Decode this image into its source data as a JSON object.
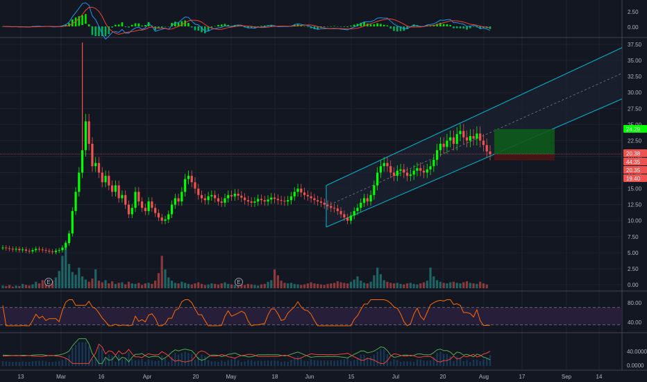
{
  "colors": {
    "background": "#131722",
    "grid": "#1f2330",
    "separator": "#434651",
    "up": "#26a69a",
    "up_bright": "#00ff00",
    "down": "#ef5350",
    "channel": "#00bcd4",
    "macd_line": "#2196f3",
    "signal_line": "#f44336",
    "rsi_line": "#ff6d00",
    "rsi_band": "#2a1f3d",
    "dmi_plus": "#4caf50",
    "dmi_minus": "#f44336",
    "adx": "#2196f3",
    "target_zone": "#0f5a1c",
    "stop_zone": "#4a1416"
  },
  "time_axis": {
    "labels": [
      "13",
      "Mar",
      "16",
      "Apr",
      "20",
      "May",
      "18",
      "Jun",
      "15",
      "Jul",
      "20",
      "Aug",
      "17",
      "Sep",
      "14"
    ]
  },
  "price_axis": {
    "labels": [
      "37.50",
      "35.00",
      "32.50",
      "30.00",
      "27.50",
      "25.00",
      "22.50",
      "20.00",
      "17.50",
      "15.00",
      "12.50",
      "10.00",
      "7.50",
      "5.00",
      "2.50",
      "0.00"
    ]
  },
  "price_tags": [
    {
      "label": "24.29",
      "color": "#00ff00",
      "text_color": "#131722"
    },
    {
      "label": "20.38",
      "color": "#ef5350",
      "text_color": "#ffffff"
    },
    {
      "label": "44:35",
      "color": "#ef5350",
      "text_color": "#ffffff"
    },
    {
      "label": "20.35",
      "color": "#ef5350",
      "text_color": "#ffffff"
    },
    {
      "label": "19.40",
      "color": "#ef5350",
      "text_color": "#ffffff"
    }
  ],
  "macd_pane": {
    "labels": [
      "2.50",
      "0.00"
    ]
  },
  "rsi_pane": {
    "labels": [
      "80.00",
      "40.00"
    ],
    "upper_band": 70,
    "lower_band": 30
  },
  "dmi_pane": {
    "labels": [
      "40.0000",
      "0.0000"
    ]
  },
  "event_markers": [
    "E",
    "E"
  ],
  "chart_data": {
    "type": "candlestick",
    "price_range": [
      0,
      37.5
    ],
    "channel": {
      "lower_start": 9.0,
      "lower_end": 29.0,
      "upper_start": 15.5,
      "upper_end": 37.0
    },
    "last_price": 20.38,
    "position_target": 24.29,
    "position_entry": 20.38,
    "position_stop": 19.4,
    "series": [
      {
        "name": "Price",
        "values": [
          5.8,
          5.7,
          5.6,
          5.5,
          5.6,
          5.4,
          5.5,
          5.3,
          5.2,
          5.4,
          5.6,
          5.5,
          5.4,
          5.3,
          5.2,
          5.1,
          5.3,
          5.4,
          5.8,
          6.5,
          8.0,
          11.5,
          14.5,
          17.5,
          21.0,
          25.5,
          22.0,
          18.5,
          19.0,
          17.5,
          16.0,
          17.0,
          15.5,
          14.5,
          15.5,
          13.5,
          14.0,
          12.5,
          11.0,
          12.0,
          14.5,
          13.0,
          12.0,
          11.5,
          13.0,
          12.0,
          11.2,
          10.5,
          10.0,
          10.2,
          11.0,
          12.5,
          13.5,
          13.0,
          14.5,
          16.5,
          17.0,
          16.0,
          15.0,
          14.0,
          13.5,
          13.2,
          13.8,
          14.0,
          13.5,
          13.0,
          12.8,
          13.5,
          14.0,
          13.8,
          14.2,
          13.9,
          13.6,
          13.2,
          13.0,
          12.8,
          13.0,
          13.4,
          13.2,
          13.0,
          13.3,
          13.6,
          13.4,
          13.2,
          13.1,
          13.0,
          13.2,
          13.8,
          14.5,
          15.0,
          14.4,
          14.0,
          13.8,
          13.5,
          13.2,
          13.0,
          12.8,
          12.5,
          12.3,
          12.0,
          11.9,
          11.5,
          11.0,
          10.5,
          10.0,
          10.8,
          11.5,
          12.0,
          12.8,
          13.5,
          13.0,
          14.0,
          15.5,
          17.5,
          18.5,
          19.0,
          18.5,
          17.5,
          17.0,
          17.8,
          18.0,
          17.5,
          17.0,
          17.2,
          17.8,
          18.2,
          17.8,
          17.5,
          18.0,
          18.5,
          19.5,
          21.0,
          22.0,
          21.5,
          22.5,
          23.0,
          22.0,
          23.5,
          24.0,
          23.0,
          22.5,
          23.2,
          22.8,
          23.6,
          22.5,
          21.8,
          20.8,
          20.38
        ]
      }
    ],
    "volume": [
      0.5,
      0.4,
      0.6,
      0.3,
      0.5,
      0.4,
      0.8,
      0.6,
      0.5,
      0.7,
      1.2,
      0.9,
      1.5,
      1.0,
      0.8,
      1.4,
      2.0,
      3.2,
      6.0,
      8.5,
      4.5,
      3.0,
      2.5,
      3.8,
      2.2,
      1.6,
      1.2,
      1.8,
      3.5,
      1.4,
      1.1,
      1.5,
      0.9,
      1.3,
      0.8,
      1.0,
      1.1,
      0.7,
      1.2,
      0.9,
      0.8,
      1.0,
      0.6,
      0.9,
      1.0,
      0.8,
      1.4,
      2.8,
      6.0,
      3.5,
      2.0,
      1.4,
      1.0,
      0.9,
      1.2,
      1.0,
      0.8,
      0.7,
      0.9,
      1.1,
      0.8,
      0.6,
      0.7,
      0.9,
      0.8,
      0.7,
      0.9,
      1.1,
      0.8,
      0.7,
      0.6,
      0.9,
      0.7,
      0.6,
      0.8,
      0.7,
      0.6,
      0.5,
      0.7,
      0.8,
      1.2,
      1.5,
      3.5,
      2.4,
      1.4,
      1.0,
      0.9,
      1.0,
      0.8,
      0.7,
      0.6,
      0.7,
      0.9,
      1.1,
      0.9,
      0.8,
      0.7,
      0.6,
      0.8,
      0.9,
      1.0,
      1.3,
      1.1,
      1.0,
      0.9,
      1.2,
      1.6,
      2.2,
      1.4,
      1.0,
      0.9,
      1.2,
      2.4,
      3.8,
      2.6,
      1.5,
      1.2,
      1.0,
      0.9,
      1.0,
      0.8,
      0.7,
      0.9,
      1.0,
      0.8,
      0.7,
      0.9,
      1.1,
      1.4,
      3.8,
      2.2,
      1.5,
      1.2,
      1.0,
      0.9,
      1.1,
      1.2,
      1.0,
      0.9,
      1.1,
      1.3,
      1.0,
      0.9,
      0.8,
      1.2,
      0.9,
      0.7
    ]
  }
}
